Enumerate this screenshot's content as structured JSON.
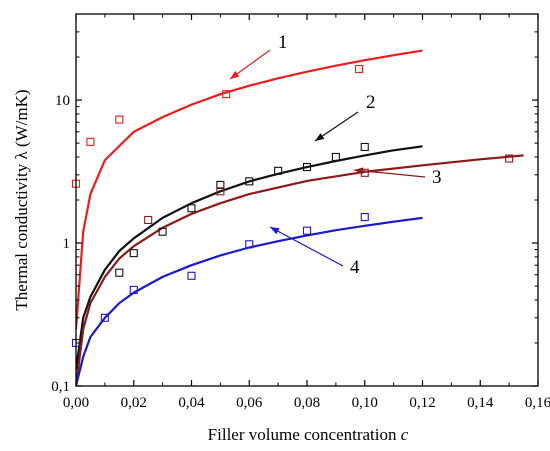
{
  "chart_data": {
    "type": "scatter",
    "xlabel": "Filler volume concentration c",
    "xlabel_text": "Filler volume concentration ",
    "xlabel_var": "c",
    "ylabel": "Thermal conductivity λ (W/mK)",
    "xlim": [
      0,
      0.16
    ],
    "ylim": [
      0.1,
      40
    ],
    "y_scale": "log",
    "grid": false,
    "legend": "none",
    "x_ticks": [
      {
        "value": 0.0,
        "label": "0,00"
      },
      {
        "value": 0.02,
        "label": "0,02"
      },
      {
        "value": 0.04,
        "label": "0,04"
      },
      {
        "value": 0.06,
        "label": "0,06"
      },
      {
        "value": 0.08,
        "label": "0,08"
      },
      {
        "value": 0.1,
        "label": "0,10"
      },
      {
        "value": 0.12,
        "label": "0,12"
      },
      {
        "value": 0.14,
        "label": "0,14"
      },
      {
        "value": 0.16,
        "label": "0,16"
      }
    ],
    "y_ticks": [
      {
        "value": 0.1,
        "label": "0,1"
      },
      {
        "value": 1,
        "label": "1"
      },
      {
        "value": 10,
        "label": "10"
      }
    ],
    "series": [
      {
        "label": "1",
        "color": "#ee1c1c",
        "points": [
          [
            0.0,
            2.6
          ],
          [
            0.005,
            5.1
          ],
          [
            0.015,
            7.3
          ],
          [
            0.052,
            11.0
          ],
          [
            0.098,
            16.5
          ]
        ],
        "curve": [
          [
            0.0,
            0.25
          ],
          [
            0.0025,
            1.2
          ],
          [
            0.005,
            2.2
          ],
          [
            0.01,
            3.8
          ],
          [
            0.02,
            6.0
          ],
          [
            0.03,
            7.6
          ],
          [
            0.04,
            9.3
          ],
          [
            0.05,
            11.0
          ],
          [
            0.06,
            12.6
          ],
          [
            0.07,
            14.2
          ],
          [
            0.08,
            15.8
          ],
          [
            0.09,
            17.4
          ],
          [
            0.1,
            19.0
          ],
          [
            0.11,
            20.6
          ],
          [
            0.12,
            22.2
          ]
        ]
      },
      {
        "label": "2",
        "color": "#111111",
        "points": [
          [
            0.015,
            0.62
          ],
          [
            0.02,
            0.85
          ],
          [
            0.03,
            1.2
          ],
          [
            0.04,
            1.75
          ],
          [
            0.05,
            2.55
          ],
          [
            0.06,
            2.7
          ],
          [
            0.07,
            3.2
          ],
          [
            0.08,
            3.4
          ],
          [
            0.09,
            4.0
          ],
          [
            0.1,
            4.7
          ]
        ],
        "curve": [
          [
            0.0,
            0.13
          ],
          [
            0.0025,
            0.3
          ],
          [
            0.005,
            0.42
          ],
          [
            0.01,
            0.65
          ],
          [
            0.015,
            0.88
          ],
          [
            0.02,
            1.08
          ],
          [
            0.03,
            1.5
          ],
          [
            0.04,
            1.9
          ],
          [
            0.05,
            2.3
          ],
          [
            0.06,
            2.7
          ],
          [
            0.07,
            3.05
          ],
          [
            0.08,
            3.4
          ],
          [
            0.09,
            3.75
          ],
          [
            0.1,
            4.1
          ],
          [
            0.11,
            4.45
          ],
          [
            0.12,
            4.75
          ]
        ]
      },
      {
        "label": "3",
        "color": "#8b1a1a",
        "points": [
          [
            0.025,
            1.45
          ],
          [
            0.05,
            2.3
          ],
          [
            0.1,
            3.1
          ],
          [
            0.15,
            3.9
          ]
        ],
        "curve": [
          [
            0.0,
            0.1
          ],
          [
            0.0025,
            0.25
          ],
          [
            0.005,
            0.38
          ],
          [
            0.01,
            0.58
          ],
          [
            0.015,
            0.78
          ],
          [
            0.02,
            0.95
          ],
          [
            0.03,
            1.28
          ],
          [
            0.04,
            1.6
          ],
          [
            0.05,
            1.9
          ],
          [
            0.06,
            2.2
          ],
          [
            0.08,
            2.72
          ],
          [
            0.1,
            3.15
          ],
          [
            0.12,
            3.5
          ],
          [
            0.14,
            3.85
          ],
          [
            0.155,
            4.1
          ]
        ]
      },
      {
        "label": "4",
        "color": "#1a1acc",
        "points": [
          [
            0.0,
            0.2
          ],
          [
            0.01,
            0.3
          ],
          [
            0.02,
            0.47
          ],
          [
            0.04,
            0.59
          ],
          [
            0.06,
            0.98
          ],
          [
            0.08,
            1.22
          ],
          [
            0.1,
            1.52
          ]
        ],
        "curve": [
          [
            0.0,
            0.1
          ],
          [
            0.0025,
            0.16
          ],
          [
            0.005,
            0.22
          ],
          [
            0.01,
            0.3
          ],
          [
            0.015,
            0.38
          ],
          [
            0.02,
            0.45
          ],
          [
            0.03,
            0.58
          ],
          [
            0.04,
            0.7
          ],
          [
            0.05,
            0.82
          ],
          [
            0.06,
            0.93
          ],
          [
            0.07,
            1.03
          ],
          [
            0.08,
            1.13
          ],
          [
            0.09,
            1.23
          ],
          [
            0.1,
            1.32
          ],
          [
            0.11,
            1.41
          ],
          [
            0.12,
            1.5
          ]
        ]
      }
    ]
  }
}
